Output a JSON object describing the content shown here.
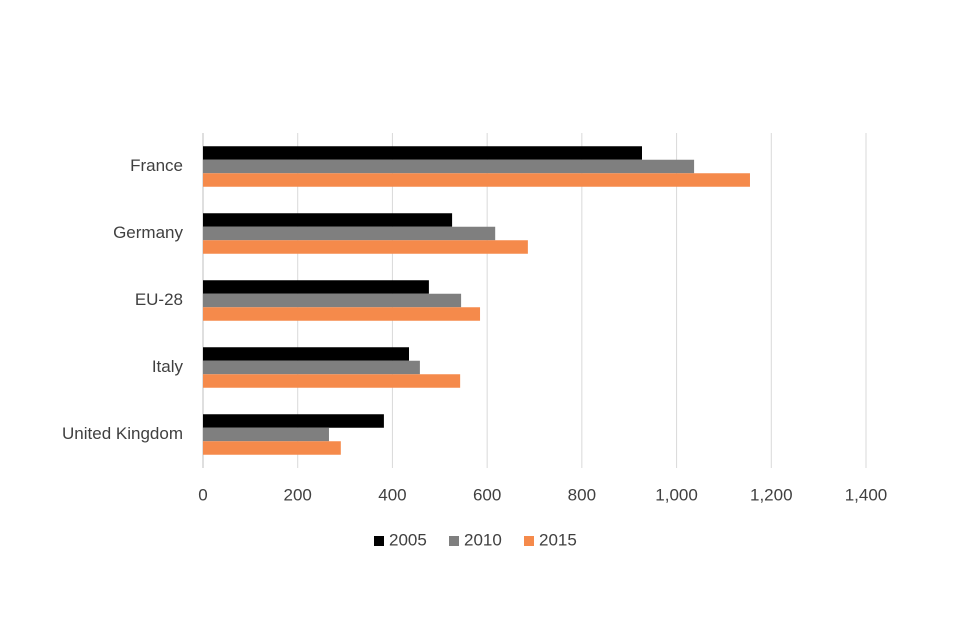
{
  "chart_data": {
    "type": "hbar",
    "categories": [
      "France",
      "Germany",
      "EU-28",
      "Italy",
      "United Kingdom"
    ],
    "series": [
      {
        "name": "2005",
        "color": "#000000",
        "values": [
          927,
          526,
          477,
          435,
          382
        ]
      },
      {
        "name": "2010",
        "color": "#7f7f7f",
        "values": [
          1037,
          617,
          545,
          458,
          266
        ]
      },
      {
        "name": "2015",
        "color": "#f58a4b",
        "values": [
          1155,
          686,
          585,
          543,
          291
        ]
      }
    ],
    "xlim": [
      0,
      1400
    ],
    "xticks": [
      0,
      200,
      400,
      600,
      800,
      {
        "value": 1000,
        "label": "1,000"
      },
      {
        "value": 1200,
        "label": "1,200"
      },
      {
        "value": 1400,
        "label": "1,400"
      }
    ],
    "grid": true,
    "legend": "bottom"
  }
}
